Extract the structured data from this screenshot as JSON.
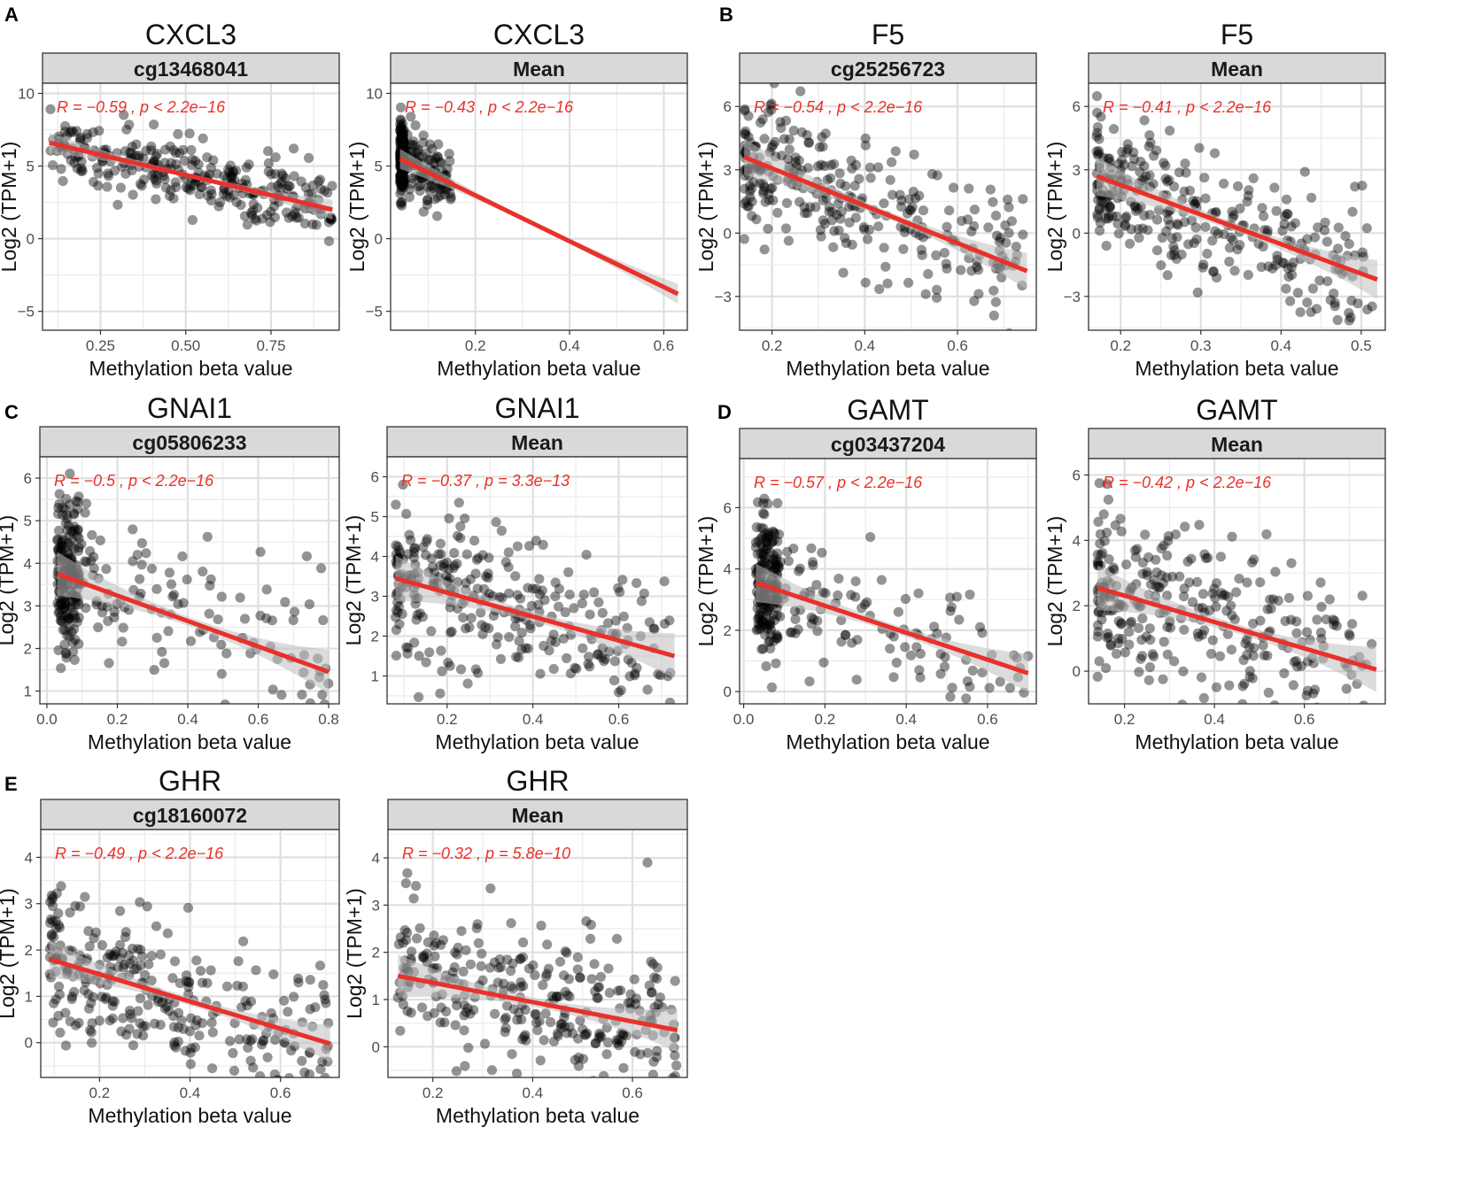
{
  "figure": {
    "caption_hidden": ""
  },
  "panel_letters": [
    "A",
    "B",
    "C",
    "D",
    "E"
  ],
  "chart_data": [
    {
      "type": "scatter",
      "panel": "A",
      "title": "CXCL3",
      "strip": "cg13468041",
      "xlabel": "Methylation beta value",
      "ylabel": "Log2 (TPM+1)",
      "xlim": [
        0.08,
        0.95
      ],
      "ylim": [
        -6.3,
        10.7
      ],
      "xticks": [
        0.25,
        0.5,
        0.75
      ],
      "xtick_labels": [
        "0.25",
        "0.50",
        "0.75"
      ],
      "yticks": [
        -5,
        0,
        5,
        10
      ],
      "ytick_labels": [
        "−5",
        "0",
        "5",
        "10"
      ],
      "annotation": "R = −0.59 , p < 2.2e−16",
      "fit": {
        "x": [
          0.1,
          0.93
        ],
        "y": [
          6.6,
          2.0
        ]
      },
      "cloud": {
        "n": 300,
        "x_range": [
          0.1,
          0.93
        ],
        "y_sd": 1.2,
        "x_shape": "uniform"
      }
    },
    {
      "type": "scatter",
      "panel": "A",
      "title": "CXCL3",
      "strip": "Mean",
      "xlabel": "Methylation beta value",
      "ylabel": "Log2 (TPM+1)",
      "xlim": [
        0.02,
        0.65
      ],
      "ylim": [
        -6.3,
        10.7
      ],
      "xticks": [
        0.2,
        0.4,
        0.6
      ],
      "xtick_labels": [
        "0.2",
        "0.4",
        "0.6"
      ],
      "yticks": [
        -5,
        0,
        5,
        10
      ],
      "ytick_labels": [
        "−5",
        "0",
        "5",
        "10"
      ],
      "annotation": "R = −0.43 , p < 2.2e−16",
      "fit": {
        "x": [
          0.04,
          0.63
        ],
        "y": [
          5.5,
          -3.8
        ]
      },
      "cloud": {
        "n": 300,
        "x_range": [
          0.04,
          0.15
        ],
        "y_sd": 1.2,
        "x_shape": "dense"
      }
    },
    {
      "type": "scatter",
      "panel": "B",
      "title": "F5",
      "strip": "cg25256723",
      "xlabel": "Methylation beta value",
      "ylabel": "Log2 (TPM+1)",
      "xlim": [
        0.13,
        0.77
      ],
      "ylim": [
        -4.6,
        7.1
      ],
      "xticks": [
        0.2,
        0.4,
        0.6
      ],
      "xtick_labels": [
        "0.2",
        "0.4",
        "0.6"
      ],
      "yticks": [
        -3,
        0,
        3,
        6
      ],
      "ytick_labels": [
        "−3",
        "0",
        "3",
        "6"
      ],
      "annotation": "R = −0.54 , p < 2.2e−16",
      "fit": {
        "x": [
          0.14,
          0.75
        ],
        "y": [
          3.6,
          -1.8
        ]
      },
      "cloud": {
        "n": 300,
        "x_range": [
          0.14,
          0.75
        ],
        "y_sd": 1.5,
        "x_shape": "skew"
      }
    },
    {
      "type": "scatter",
      "panel": "B",
      "title": "F5",
      "strip": "Mean",
      "xlabel": "Methylation beta value",
      "ylabel": "Log2 (TPM+1)",
      "xlim": [
        0.16,
        0.53
      ],
      "ylim": [
        -4.6,
        7.1
      ],
      "xticks": [
        0.2,
        0.3,
        0.4,
        0.5
      ],
      "xtick_labels": [
        "0.2",
        "0.3",
        "0.4",
        "0.5"
      ],
      "yticks": [
        -3,
        0,
        3,
        6
      ],
      "ytick_labels": [
        "−3",
        "0",
        "3",
        "6"
      ],
      "annotation": "R = −0.41 , p < 2.2e−16",
      "fit": {
        "x": [
          0.17,
          0.52
        ],
        "y": [
          2.7,
          -2.2
        ]
      },
      "cloud": {
        "n": 300,
        "x_range": [
          0.17,
          0.52
        ],
        "y_sd": 1.6,
        "x_shape": "skew"
      }
    },
    {
      "type": "scatter",
      "panel": "C",
      "title": "GNAI1",
      "strip": "cg05806233",
      "xlabel": "Methylation beta value",
      "ylabel": "Log2 (TPM+1)",
      "xlim": [
        -0.02,
        0.83
      ],
      "ylim": [
        0.7,
        6.5
      ],
      "xticks": [
        0.0,
        0.2,
        0.4,
        0.6,
        0.8
      ],
      "xtick_labels": [
        "0.0",
        "0.2",
        "0.4",
        "0.6",
        "0.8"
      ],
      "yticks": [
        1,
        2,
        3,
        4,
        5,
        6
      ],
      "ytick_labels": [
        "1",
        "2",
        "3",
        "4",
        "5",
        "6"
      ],
      "annotation": "R = −0.5 , p < 2.2e−16",
      "fit": {
        "x": [
          0.03,
          0.8
        ],
        "y": [
          3.75,
          1.45
        ]
      },
      "cloud": {
        "n": 300,
        "x_range": [
          0.03,
          0.8
        ],
        "y_sd": 0.9,
        "x_shape": "dense"
      }
    },
    {
      "type": "scatter",
      "panel": "C",
      "title": "GNAI1",
      "strip": "Mean",
      "xlabel": "Methylation beta value",
      "ylabel": "Log2 (TPM+1)",
      "xlim": [
        0.06,
        0.76
      ],
      "ylim": [
        0.3,
        6.5
      ],
      "xticks": [
        0.2,
        0.4,
        0.6
      ],
      "xtick_labels": [
        "0.2",
        "0.4",
        "0.6"
      ],
      "yticks": [
        1,
        2,
        3,
        4,
        5,
        6
      ],
      "ytick_labels": [
        "1",
        "2",
        "3",
        "4",
        "5",
        "6"
      ],
      "annotation": "R = −0.37 , p = 3.3e−13",
      "fit": {
        "x": [
          0.08,
          0.73
        ],
        "y": [
          3.45,
          1.5
        ]
      },
      "cloud": {
        "n": 300,
        "x_range": [
          0.08,
          0.73
        ],
        "y_sd": 1.0,
        "x_shape": "skew"
      }
    },
    {
      "type": "scatter",
      "panel": "D",
      "title": "GAMT",
      "strip": "cg03437204",
      "xlabel": "Methylation beta value",
      "ylabel": "Log2 (TPM+1)",
      "xlim": [
        -0.01,
        0.72
      ],
      "ylim": [
        -0.4,
        7.6
      ],
      "xticks": [
        0.0,
        0.2,
        0.4,
        0.6
      ],
      "xtick_labels": [
        "0.0",
        "0.2",
        "0.4",
        "0.6"
      ],
      "yticks": [
        0,
        2,
        4,
        6
      ],
      "ytick_labels": [
        "0",
        "2",
        "4",
        "6"
      ],
      "annotation": "R = −0.57 , p < 2.2e−16",
      "fit": {
        "x": [
          0.03,
          0.7
        ],
        "y": [
          3.55,
          0.6
        ]
      },
      "cloud": {
        "n": 300,
        "x_range": [
          0.03,
          0.7
        ],
        "y_sd": 1.1,
        "x_shape": "dense"
      }
    },
    {
      "type": "scatter",
      "panel": "D",
      "title": "GAMT",
      "strip": "Mean",
      "xlabel": "Methylation beta value",
      "ylabel": "Log2 (TPM+1)",
      "xlim": [
        0.12,
        0.78
      ],
      "ylim": [
        -1.0,
        6.5
      ],
      "xticks": [
        0.2,
        0.4,
        0.6
      ],
      "xtick_labels": [
        "0.2",
        "0.4",
        "0.6"
      ],
      "yticks": [
        0,
        2,
        4,
        6
      ],
      "ytick_labels": [
        "0",
        "2",
        "4",
        "6"
      ],
      "annotation": "R = −0.42 , p < 2.2e−16",
      "fit": {
        "x": [
          0.14,
          0.76
        ],
        "y": [
          2.55,
          0.05
        ]
      },
      "cloud": {
        "n": 300,
        "x_range": [
          0.14,
          0.76
        ],
        "y_sd": 1.2,
        "x_shape": "skew"
      }
    },
    {
      "type": "scatter",
      "panel": "E",
      "title": "GHR",
      "strip": "cg18160072",
      "xlabel": "Methylation beta value",
      "ylabel": "Log2 (TPM+1)",
      "xlim": [
        0.07,
        0.73
      ],
      "ylim": [
        -0.75,
        4.6
      ],
      "xticks": [
        0.2,
        0.4,
        0.6
      ],
      "xtick_labels": [
        "0.2",
        "0.4",
        "0.6"
      ],
      "yticks": [
        0,
        1,
        2,
        3,
        4
      ],
      "ytick_labels": [
        "0",
        "1",
        "2",
        "3",
        "4"
      ],
      "annotation": "R = −0.49 , p < 2.2e−16",
      "fit": {
        "x": [
          0.09,
          0.71
        ],
        "y": [
          1.8,
          -0.02
        ]
      },
      "cloud": {
        "n": 300,
        "x_range": [
          0.09,
          0.71
        ],
        "y_sd": 0.7,
        "x_shape": "skew"
      }
    },
    {
      "type": "scatter",
      "panel": "E",
      "title": "GHR",
      "strip": "Mean",
      "xlabel": "Methylation beta value",
      "ylabel": "Log2 (TPM+1)",
      "xlim": [
        0.11,
        0.71
      ],
      "ylim": [
        -0.65,
        4.6
      ],
      "xticks": [
        0.2,
        0.4,
        0.6
      ],
      "xtick_labels": [
        "0.2",
        "0.4",
        "0.6"
      ],
      "yticks": [
        0,
        1,
        2,
        3,
        4
      ],
      "ytick_labels": [
        "0",
        "1",
        "2",
        "3",
        "4"
      ],
      "annotation": "R = −0.32 , p = 5.8e−10",
      "fit": {
        "x": [
          0.13,
          0.69
        ],
        "y": [
          1.5,
          0.35
        ]
      },
      "cloud": {
        "n": 300,
        "x_range": [
          0.13,
          0.69
        ],
        "y_sd": 0.8,
        "x_shape": "uniform"
      }
    }
  ],
  "colors": {
    "strip_fill": "#d9d9d9",
    "point": "#000000",
    "fit_line": "#e8312a",
    "ci_band": "#bfbfbf",
    "grid": "#ebebeb",
    "annotation": "#e8312a"
  }
}
